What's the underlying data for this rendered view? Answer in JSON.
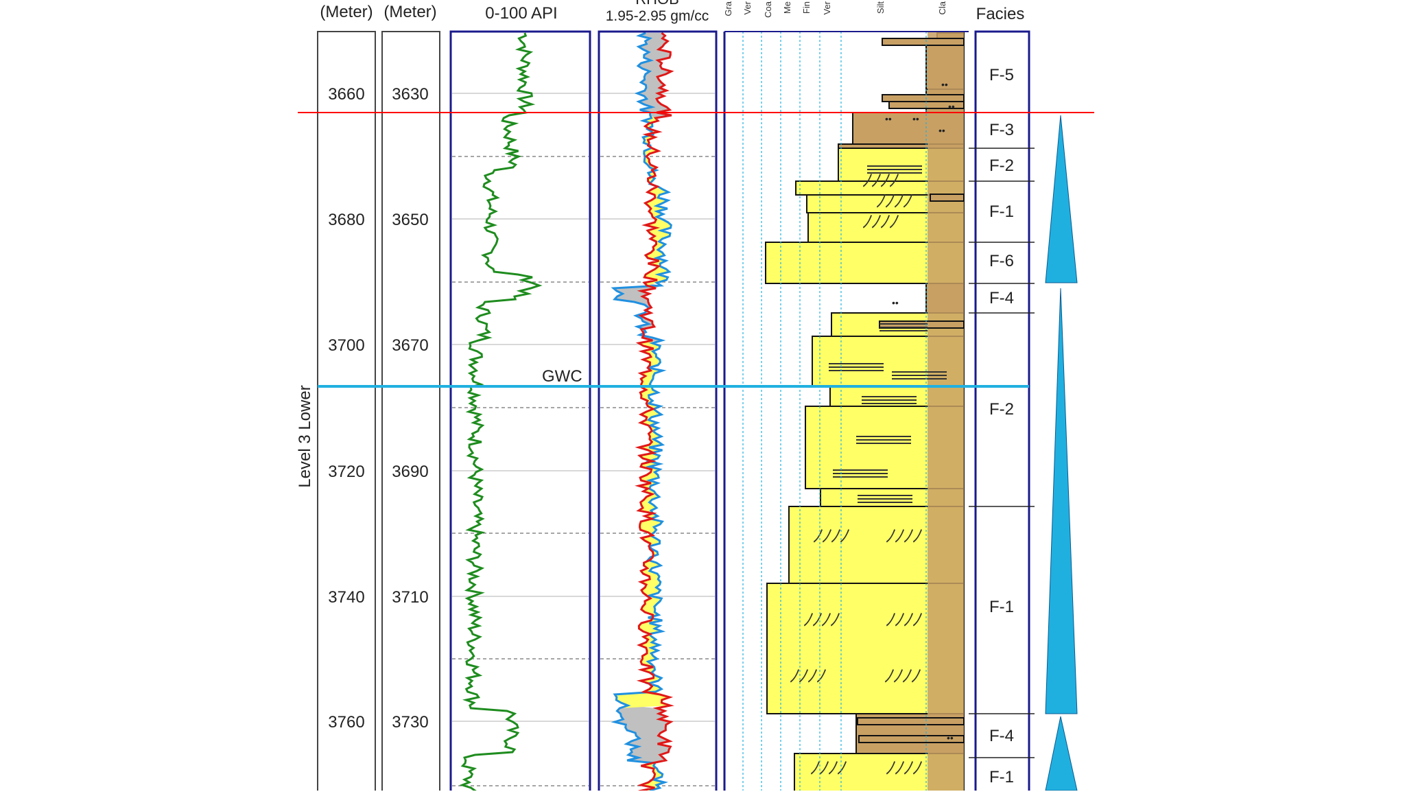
{
  "headers": {
    "md_unit": "(Meter)",
    "tvd_unit": "(Meter)",
    "gr_scale": "0-100 API",
    "rhob_title": "RHOB",
    "rhob_scale": "1.95-2.95 gm/cc",
    "facies_title": "Facies"
  },
  "grain_size_labels": [
    "Gra",
    "Ver",
    "Coa",
    "Me",
    "Fin",
    "Ver",
    "Silt",
    "Cla"
  ],
  "zone_label": "Level 3 Lower",
  "md_depths": [
    "3660",
    "3680",
    "3700",
    "3720",
    "3740",
    "3760"
  ],
  "tvd_depths": [
    "3630",
    "3650",
    "3670",
    "3690",
    "3710",
    "3730"
  ],
  "gwc_label": "GWC",
  "facies": [
    "F-5",
    "F-3",
    "F-2",
    "F-1",
    "F-6",
    "F-4",
    "F-2",
    "F-1",
    "F-4",
    "F-1"
  ],
  "colors": {
    "frame": "#1a1a8c",
    "gamma_ray": "#1e8c1e",
    "density": "#e01818",
    "neutron": "#2090e0",
    "crossover_gas": "#c0c0c0",
    "crossover_sand": "#ffff66",
    "sandstone": "#ffff66",
    "shale": "#c8a064",
    "sequence_boundary": "#ff0000",
    "gwc_line": "#20b0e0",
    "triangle": "#20b0e0"
  }
}
